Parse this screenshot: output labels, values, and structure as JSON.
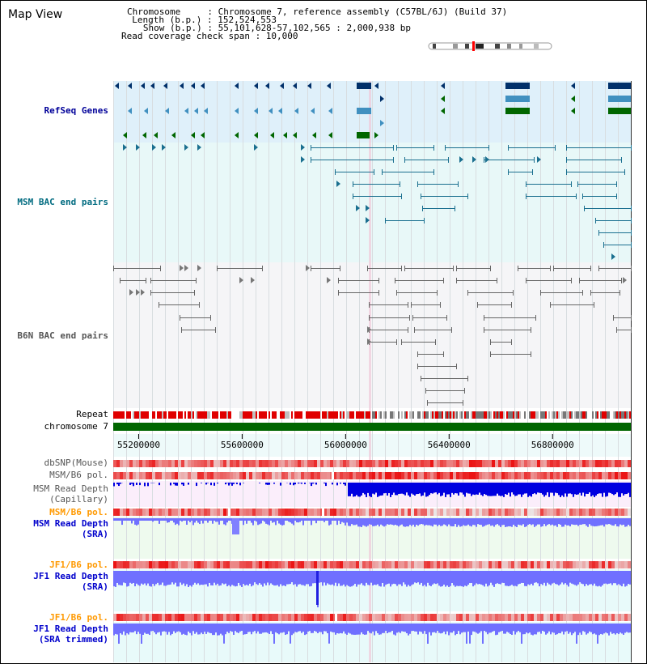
{
  "header": {
    "title": "Map View",
    "info_lines": [
      "Chromosome     : Chromosome 7, reference assembly (C57BL/6J) (Build 37)",
      "  Length (b.p.) : 152,524,553",
      "   Show (b.p.) : 55,101,628-57,102,565 : 2,000,938 bp",
      "Read coverage check span : 10,000"
    ]
  },
  "tracks": {
    "refseq": {
      "label": "RefSeq Genes",
      "color": "#000099"
    },
    "msm_bac": {
      "label": "MSM BAC end pairs",
      "color": "#006b80"
    },
    "b6n_bac": {
      "label": "B6N BAC end pairs",
      "color": "#555555"
    },
    "repeat": {
      "label": "Repeat"
    },
    "chromosome": {
      "label": "chromosome 7"
    },
    "dbsnp": {
      "label": "dbSNP(Mouse)"
    },
    "msm_b6_pol_1": {
      "label": "MSM/B6 pol."
    },
    "msm_depth_cap": {
      "label_1": "MSM Read Depth",
      "label_2": "(Capillary)"
    },
    "msm_b6_pol_2": {
      "label": "MSM/B6 pol.",
      "color": "#ff9900"
    },
    "msm_depth_sra": {
      "label_1": "MSM Read Depth",
      "label_2": "(SRA)",
      "color": "#0000cc"
    },
    "jf1_b6_pol_1": {
      "label": "JF1/B6 pol.",
      "color": "#ff9900"
    },
    "jf1_depth_sra": {
      "label_1": "JF1 Read Depth",
      "label_2": "(SRA)",
      "color": "#0000cc"
    },
    "jf1_b6_pol_2": {
      "label": "JF1/B6 pol.",
      "color": "#ff9900"
    },
    "jf1_depth_trim": {
      "label_1": "JF1 Read Depth",
      "label_2": "(SRA trimmed)",
      "color": "#0000cc"
    }
  },
  "axis": {
    "ticks": [
      "55200000",
      "55600000",
      "56000000",
      "56400000",
      "56800000"
    ],
    "tick_values": [
      55200000,
      55600000,
      56000000,
      56400000,
      56800000
    ],
    "range": [
      55101628,
      57102565
    ]
  },
  "colors": {
    "refseq_dark": "#00306a",
    "refseq_mid": "#4090c0",
    "refseq_green": "#006600",
    "bac_msm": "#1a6f8f",
    "bac_b6n": "#666666",
    "chrom_bar": "#006600",
    "snp_red": "#e00000",
    "depth_blue": "#0000e0",
    "depth_light": "#7070ff"
  }
}
